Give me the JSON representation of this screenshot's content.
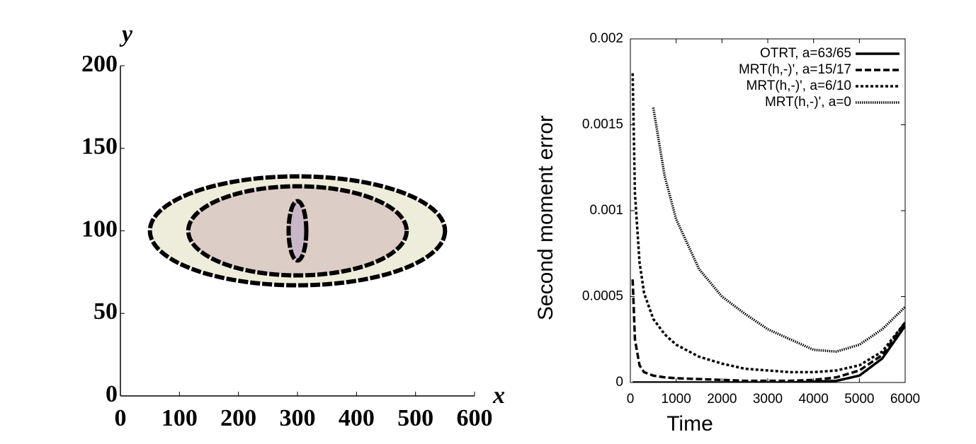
{
  "chart_data": [
    {
      "type": "contour",
      "xlabel": "x",
      "ylabel": "y",
      "xlim": [
        0,
        600
      ],
      "ylim": [
        0,
        200
      ],
      "xticks": [
        0,
        100,
        200,
        300,
        400,
        500,
        600
      ],
      "yticks": [
        0,
        50,
        100,
        150,
        200
      ],
      "ellipses": [
        {
          "cx": 300,
          "cy": 100,
          "rx": 250,
          "ry": 33,
          "color": "#eeecdb"
        },
        {
          "cx": 300,
          "cy": 100,
          "rx": 185,
          "ry": 27,
          "color": "#dccdc6"
        },
        {
          "cx": 300,
          "cy": 100,
          "rx": 15,
          "ry": 18,
          "color": "#c8b7c6"
        }
      ]
    },
    {
      "type": "line",
      "xlabel": "Time",
      "ylabel": "Second moment error",
      "xlim": [
        0,
        6000
      ],
      "ylim": [
        0,
        0.002
      ],
      "xticks": [
        0,
        1000,
        2000,
        3000,
        4000,
        5000,
        6000
      ],
      "yticks": [
        0,
        0.0005,
        0.001,
        0.0015,
        0.002
      ],
      "legend": "upper-right",
      "x": [
        50,
        100,
        200,
        300,
        500,
        750,
        1000,
        1500,
        2000,
        2500,
        3000,
        3500,
        4000,
        4500,
        5000,
        5500,
        6000
      ],
      "series": [
        {
          "name": "OTRT, a=63/65",
          "color": "#000000",
          "dash": "solid",
          "values": [
            0,
            0,
            0,
            0,
            0,
            0,
            0,
            0,
            0,
            0,
            0,
            0,
            5e-06,
            1e-05,
            4e-05,
            0.00014,
            0.00033
          ]
        },
        {
          "name": "MRT(h,-)', a=15/17",
          "color": "#000000",
          "dash": "dashed",
          "values": [
            0.0006,
            0.00025,
            0.0001,
            6e-05,
            4e-05,
            3e-05,
            2.5e-05,
            2e-05,
            1.5e-05,
            1e-05,
            1e-05,
            1e-05,
            1.5e-05,
            3e-05,
            7e-05,
            0.00016,
            0.00035
          ]
        },
        {
          "name": "MRT(h,-)', a=6/10",
          "color": "#000000",
          "dash": "dotted",
          "values": [
            0.0018,
            0.0011,
            0.0007,
            0.00052,
            0.00037,
            0.00028,
            0.00022,
            0.00015,
            0.00011,
            8e-05,
            7e-05,
            6e-05,
            6e-05,
            7e-05,
            0.0001,
            0.00018,
            0.00035
          ]
        },
        {
          "name": "MRT(h,-)', a=0",
          "color": "#000000",
          "dash": "fine-dotted",
          "values": [
            null,
            null,
            null,
            null,
            0.0016,
            0.0012,
            0.00095,
            0.00066,
            0.0005,
            0.0004,
            0.00031,
            0.00025,
            0.00019,
            0.00018,
            0.00022,
            0.00031,
            0.00044
          ]
        }
      ]
    }
  ]
}
